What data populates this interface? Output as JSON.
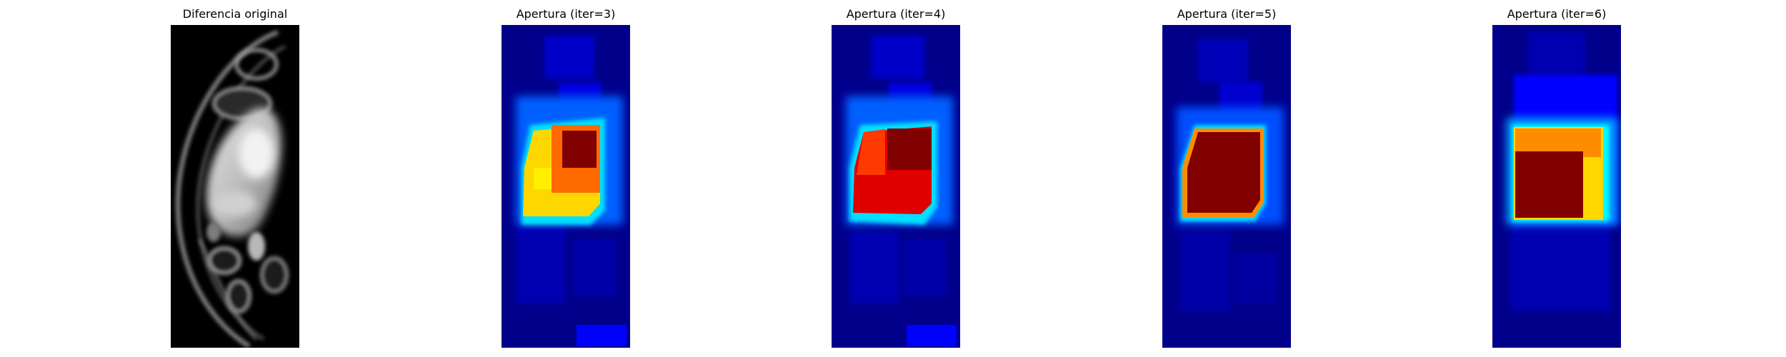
{
  "panels": [
    {
      "title": "Diferencia original",
      "kind": "grayscale"
    },
    {
      "title": "Apertura (iter=3)",
      "kind": "heatmap"
    },
    {
      "title": "Apertura (iter=4)",
      "kind": "heatmap"
    },
    {
      "title": "Apertura (iter=5)",
      "kind": "heatmap"
    },
    {
      "title": "Apertura (iter=6)",
      "kind": "heatmap"
    }
  ],
  "colors": {
    "background": "#ffffff",
    "heatmap_base": "#00008b",
    "heatmap_blue": "#0000ff",
    "heatmap_cyan": "#00ffff",
    "heatmap_yellow": "#ffd700",
    "heatmap_orange": "#ff8c00",
    "heatmap_red": "#e00000",
    "heatmap_darkred": "#800000"
  }
}
